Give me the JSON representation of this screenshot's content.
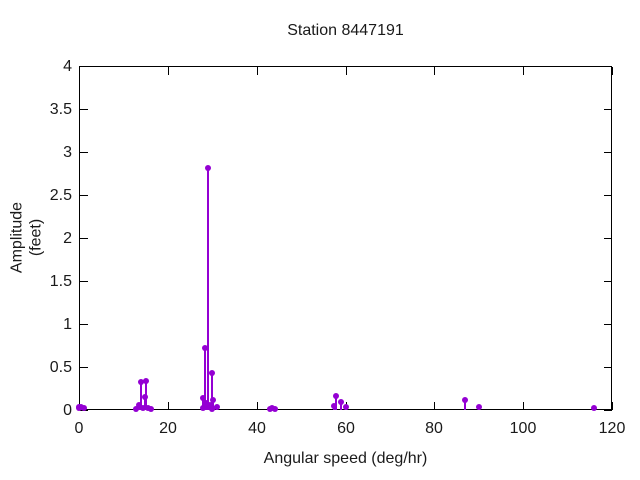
{
  "window": {
    "background": "#ffffff",
    "text_color": "#1a1a1a"
  },
  "chart_data": {
    "type": "scatter",
    "style": "impulses-with-points",
    "title": "Station 8447191",
    "xlabel": "Angular speed (deg/hr)",
    "ylabel": "Amplitude (feet)",
    "xlim": [
      0,
      120
    ],
    "ylim": [
      0,
      4
    ],
    "x_ticks": [
      0,
      20,
      40,
      60,
      80,
      100,
      120
    ],
    "y_ticks": [
      0,
      0.5,
      1,
      1.5,
      2,
      2.5,
      3,
      3.5,
      4
    ],
    "grid": "off",
    "legend": "none",
    "series_color": "#9400D3",
    "axis_color": "#000000",
    "points": [
      [
        0.04,
        0.02
      ],
      [
        0.08,
        0.03
      ],
      [
        0.54,
        0.03
      ],
      [
        1.02,
        0.02
      ],
      [
        12.85,
        0.01
      ],
      [
        13.4,
        0.06
      ],
      [
        13.94,
        0.32
      ],
      [
        14.49,
        0.02
      ],
      [
        14.96,
        0.15
      ],
      [
        15.04,
        0.34
      ],
      [
        15.59,
        0.02
      ],
      [
        16.14,
        0.01
      ],
      [
        27.9,
        0.02
      ],
      [
        27.97,
        0.14
      ],
      [
        28.44,
        0.72
      ],
      [
        28.51,
        0.08
      ],
      [
        28.98,
        2.81
      ],
      [
        29.46,
        0.05
      ],
      [
        29.53,
        0.06
      ],
      [
        29.96,
        0.02
      ],
      [
        30.0,
        0.43
      ],
      [
        30.04,
        0.01
      ],
      [
        30.08,
        0.12
      ],
      [
        31.02,
        0.03
      ],
      [
        42.93,
        0.01
      ],
      [
        43.48,
        0.02
      ],
      [
        44.03,
        0.01
      ],
      [
        57.42,
        0.05
      ],
      [
        57.97,
        0.16
      ],
      [
        58.98,
        0.09
      ],
      [
        60.0,
        0.03
      ],
      [
        86.95,
        0.12
      ],
      [
        90.0,
        0.03
      ],
      [
        115.94,
        0.02
      ]
    ]
  }
}
